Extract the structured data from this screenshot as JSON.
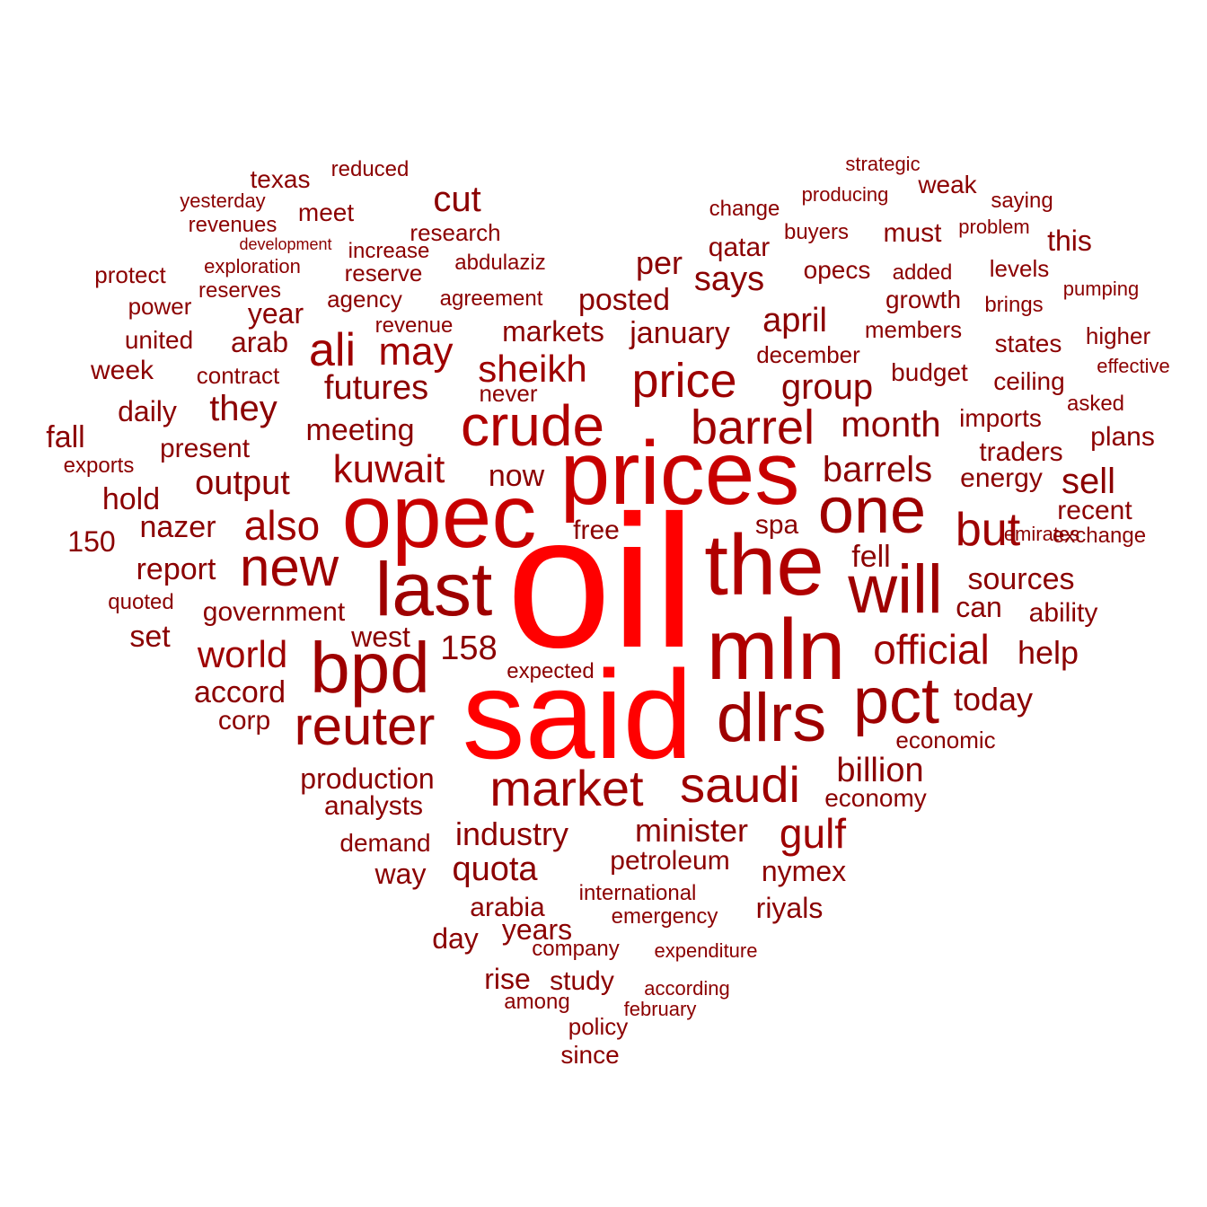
{
  "words": [
    {
      "text": "oil",
      "shade": "#ff0000"
    },
    {
      "text": "said",
      "shade": "#ff0000"
    },
    {
      "text": "prices",
      "shade": "#c80000"
    },
    {
      "text": "opec",
      "shade": "#c80000"
    },
    {
      "text": "the",
      "shade": "#b00000"
    },
    {
      "text": "mln",
      "shade": "#b00000"
    },
    {
      "text": "last",
      "shade": "#9e0000"
    },
    {
      "text": "will",
      "shade": "#9e0000"
    },
    {
      "text": "crude",
      "shade": "#b00000"
    },
    {
      "text": "bpd",
      "shade": "#9e0000"
    },
    {
      "text": "dlrs",
      "shade": "#9e0000"
    },
    {
      "text": "one",
      "shade": "#9e0000"
    },
    {
      "text": "pct",
      "shade": "#9e0000"
    },
    {
      "text": "reuter",
      "shade": "#9e0000"
    },
    {
      "text": "new",
      "shade": "#9e0000"
    },
    {
      "text": "market",
      "shade": "#9e0000"
    },
    {
      "text": "saudi",
      "shade": "#9e0000"
    },
    {
      "text": "price",
      "shade": "#9e0000"
    },
    {
      "text": "barrel",
      "shade": "#9e0000"
    },
    {
      "text": "ali",
      "shade": "#9e0000"
    },
    {
      "text": "but",
      "shade": "#9e0000"
    },
    {
      "text": "also",
      "shade": "#9e0000"
    },
    {
      "text": "official",
      "shade": "#9e0000"
    },
    {
      "text": "kuwait",
      "shade": "#9e0000"
    },
    {
      "text": "may",
      "shade": "#9e0000"
    },
    {
      "text": "sheikh",
      "shade": "#9e0000"
    },
    {
      "text": "world",
      "shade": "#9e0000"
    },
    {
      "text": "gulf",
      "shade": "#9e0000"
    },
    {
      "text": "cut",
      "shade": "#8b0000"
    },
    {
      "text": "month",
      "shade": "#8b0000"
    },
    {
      "text": "barrels",
      "shade": "#8b0000"
    },
    {
      "text": "april",
      "shade": "#8b0000"
    },
    {
      "text": "they",
      "shade": "#8b0000"
    },
    {
      "text": "group",
      "shade": "#8b0000"
    },
    {
      "text": "futures",
      "shade": "#8b0000"
    },
    {
      "text": "output",
      "shade": "#8b0000"
    },
    {
      "text": "sell",
      "shade": "#8b0000"
    },
    {
      "text": "billion",
      "shade": "#8b0000"
    },
    {
      "text": "quota",
      "shade": "#8b0000"
    },
    {
      "text": "minister",
      "shade": "#8b0000"
    },
    {
      "text": "industry",
      "shade": "#8b0000"
    },
    {
      "text": "says",
      "shade": "#8b0000"
    },
    {
      "text": "per",
      "shade": "#8b0000"
    },
    {
      "text": "posted",
      "shade": "#8b0000"
    },
    {
      "text": "january",
      "shade": "#8b0000"
    },
    {
      "text": "markets",
      "shade": "#8b0000"
    },
    {
      "text": "meeting",
      "shade": "#8b0000"
    },
    {
      "text": "now",
      "shade": "#8b0000"
    },
    {
      "text": "nazer",
      "shade": "#8b0000"
    },
    {
      "text": "report",
      "shade": "#8b0000"
    },
    {
      "text": "hold",
      "shade": "#8b0000"
    },
    {
      "text": "fall",
      "shade": "#8b0000"
    },
    {
      "text": "158",
      "shade": "#8b0000"
    },
    {
      "text": "help",
      "shade": "#8b0000"
    },
    {
      "text": "today",
      "shade": "#8b0000"
    },
    {
      "text": "accord",
      "shade": "#8b0000"
    },
    {
      "text": "production",
      "shade": "#8b0000"
    },
    {
      "text": "sources",
      "shade": "#8b0000"
    },
    {
      "text": "fell",
      "shade": "#8b0000"
    },
    {
      "text": "this",
      "shade": "#8b0000"
    },
    {
      "text": "qatar",
      "shade": "#8b0000"
    },
    {
      "text": "year",
      "shade": "#8b0000"
    },
    {
      "text": "arab",
      "shade": "#8b0000"
    },
    {
      "text": "daily",
      "shade": "#8b0000"
    },
    {
      "text": "present",
      "shade": "#8b0000"
    },
    {
      "text": "150",
      "shade": "#8b0000"
    },
    {
      "text": "set",
      "shade": "#8b0000"
    },
    {
      "text": "government",
      "shade": "#8b0000"
    },
    {
      "text": "west",
      "shade": "#8b0000"
    },
    {
      "text": "corp",
      "shade": "#8b0000"
    },
    {
      "text": "analysts",
      "shade": "#8b0000"
    },
    {
      "text": "demand",
      "shade": "#8b0000"
    },
    {
      "text": "way",
      "shade": "#8b0000"
    },
    {
      "text": "arabia",
      "shade": "#8b0000"
    },
    {
      "text": "years",
      "shade": "#8b0000"
    },
    {
      "text": "day",
      "shade": "#8b0000"
    },
    {
      "text": "rise",
      "shade": "#8b0000"
    },
    {
      "text": "study",
      "shade": "#8b0000"
    },
    {
      "text": "petroleum",
      "shade": "#8b0000"
    },
    {
      "text": "nymex",
      "shade": "#8b0000"
    },
    {
      "text": "riyals",
      "shade": "#8b0000"
    },
    {
      "text": "economy",
      "shade": "#8b0000"
    },
    {
      "text": "economic",
      "shade": "#8b0000"
    },
    {
      "text": "can",
      "shade": "#8b0000"
    },
    {
      "text": "ability",
      "shade": "#8b0000"
    },
    {
      "text": "recent",
      "shade": "#8b0000"
    },
    {
      "text": "energy",
      "shade": "#8b0000"
    },
    {
      "text": "traders",
      "shade": "#8b0000"
    },
    {
      "text": "plans",
      "shade": "#8b0000"
    },
    {
      "text": "imports",
      "shade": "#8b0000"
    },
    {
      "text": "states",
      "shade": "#8b0000"
    },
    {
      "text": "budget",
      "shade": "#8b0000"
    },
    {
      "text": "ceiling",
      "shade": "#8b0000"
    },
    {
      "text": "growth",
      "shade": "#8b0000"
    },
    {
      "text": "opecs",
      "shade": "#8b0000"
    },
    {
      "text": "must",
      "shade": "#8b0000"
    },
    {
      "text": "weak",
      "shade": "#8b0000"
    },
    {
      "text": "texas",
      "shade": "#8b0000"
    },
    {
      "text": "meet",
      "shade": "#8b0000"
    },
    {
      "text": "research",
      "shade": "#8b0000"
    },
    {
      "text": "reserve",
      "shade": "#8b0000"
    },
    {
      "text": "agency",
      "shade": "#8b0000"
    },
    {
      "text": "agreement",
      "shade": "#8b0000"
    },
    {
      "text": "united",
      "shade": "#8b0000"
    },
    {
      "text": "week",
      "shade": "#8b0000"
    },
    {
      "text": "contract",
      "shade": "#8b0000"
    },
    {
      "text": "exports",
      "shade": "#8b0000"
    },
    {
      "text": "protect",
      "shade": "#8b0000"
    },
    {
      "text": "power",
      "shade": "#8b0000"
    },
    {
      "text": "reserves",
      "shade": "#8b0000"
    },
    {
      "text": "exploration",
      "shade": "#8b0000"
    },
    {
      "text": "revenues",
      "shade": "#8b0000"
    },
    {
      "text": "yesterday",
      "shade": "#8b0000"
    },
    {
      "text": "development",
      "shade": "#8b0000"
    },
    {
      "text": "increase",
      "shade": "#8b0000"
    },
    {
      "text": "abdulaziz",
      "shade": "#8b0000"
    },
    {
      "text": "reduced",
      "shade": "#8b0000"
    },
    {
      "text": "revenue",
      "shade": "#8b0000"
    },
    {
      "text": "never",
      "shade": "#8b0000"
    },
    {
      "text": "free",
      "shade": "#8b0000"
    },
    {
      "text": "spa",
      "shade": "#8b0000"
    },
    {
      "text": "quoted",
      "shade": "#8b0000"
    },
    {
      "text": "expected",
      "shade": "#8b0000"
    },
    {
      "text": "international",
      "shade": "#8b0000"
    },
    {
      "text": "emergency",
      "shade": "#8b0000"
    },
    {
      "text": "company",
      "shade": "#8b0000"
    },
    {
      "text": "expenditure",
      "shade": "#8b0000"
    },
    {
      "text": "according",
      "shade": "#8b0000"
    },
    {
      "text": "among",
      "shade": "#8b0000"
    },
    {
      "text": "february",
      "shade": "#8b0000"
    },
    {
      "text": "policy",
      "shade": "#8b0000"
    },
    {
      "text": "since",
      "shade": "#8b0000"
    },
    {
      "text": "december",
      "shade": "#8b0000"
    },
    {
      "text": "members",
      "shade": "#8b0000"
    },
    {
      "text": "higher",
      "shade": "#8b0000"
    },
    {
      "text": "effective",
      "shade": "#8b0000"
    },
    {
      "text": "asked",
      "shade": "#8b0000"
    },
    {
      "text": "emirates",
      "shade": "#8b0000"
    },
    {
      "text": "exchange",
      "shade": "#8b0000"
    },
    {
      "text": "levels",
      "shade": "#8b0000"
    },
    {
      "text": "added",
      "shade": "#8b0000"
    },
    {
      "text": "brings",
      "shade": "#8b0000"
    },
    {
      "text": "pumping",
      "shade": "#8b0000"
    },
    {
      "text": "problem",
      "shade": "#8b0000"
    },
    {
      "text": "saying",
      "shade": "#8b0000"
    },
    {
      "text": "buyers",
      "shade": "#8b0000"
    },
    {
      "text": "producing",
      "shade": "#8b0000"
    },
    {
      "text": "change",
      "shade": "#8b0000"
    },
    {
      "text": "strategic",
      "shade": "#8b0000"
    }
  ]
}
